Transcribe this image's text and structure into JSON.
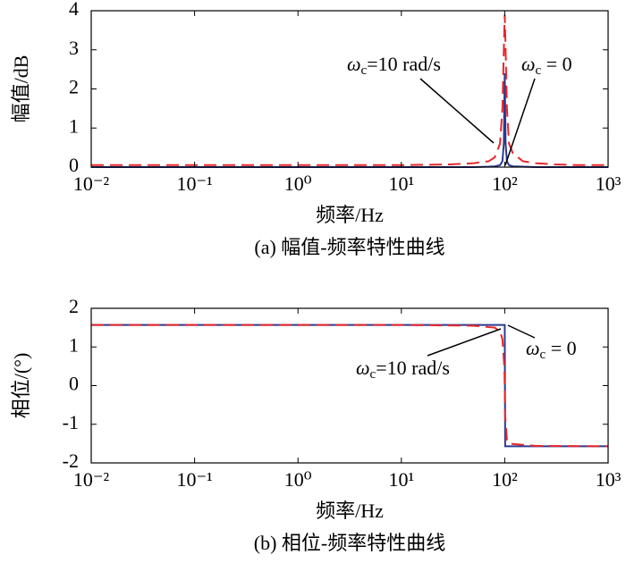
{
  "chart_data": [
    {
      "type": "line",
      "xlabel": "频率/Hz",
      "ylabel": "幅值/dB",
      "caption": "(a) 幅值-频率特性曲线",
      "xscale": "log",
      "xlim": [
        0.01,
        1000
      ],
      "xticks": [
        {
          "value": 0.01,
          "label": "10⁻²"
        },
        {
          "value": 0.1,
          "label": "10⁻¹"
        },
        {
          "value": 1,
          "label": "10⁰"
        },
        {
          "value": 10,
          "label": "10¹"
        },
        {
          "value": 100,
          "label": "10²"
        },
        {
          "value": 1000,
          "label": "10³"
        }
      ],
      "ylim": [
        0,
        4
      ],
      "yticks": [
        0,
        1,
        2,
        3,
        4
      ],
      "x": [
        0.01,
        0.1,
        1,
        10,
        30,
        50,
        70,
        80,
        90,
        95,
        98,
        100,
        102,
        105,
        110,
        120,
        150,
        200,
        300,
        500,
        1000
      ],
      "series": [
        {
          "name": "ωc = 0",
          "color": "#2b3a8f",
          "linestyle": "solid",
          "values": [
            0,
            0,
            0,
            0,
            0,
            0,
            0.01,
            0.02,
            0.05,
            0.15,
            0.6,
            2.4,
            0.6,
            0.15,
            0.05,
            0.02,
            0.01,
            0,
            0,
            0,
            0
          ]
        },
        {
          "name": "ωc=10 rad/s",
          "color": "#e8262b",
          "linestyle": "dashed",
          "values": [
            0.05,
            0.05,
            0.05,
            0.05,
            0.07,
            0.1,
            0.15,
            0.25,
            0.6,
            1.5,
            3.0,
            3.9,
            3.0,
            1.5,
            0.6,
            0.35,
            0.15,
            0.1,
            0.07,
            0.05,
            0.05
          ]
        }
      ],
      "annotations": [
        {
          "symbol": "ω",
          "subscript": "c",
          "text": "=10 rad/s"
        },
        {
          "symbol": "ω",
          "subscript": "c",
          "text": " = 0"
        }
      ]
    },
    {
      "type": "line",
      "xlabel": "频率/Hz",
      "ylabel": "相位/(°)",
      "caption": "(b) 相位-频率特性曲线",
      "xscale": "log",
      "xlim": [
        0.01,
        1000
      ],
      "xticks": [
        {
          "value": 0.01,
          "label": "10⁻²"
        },
        {
          "value": 0.1,
          "label": "10⁻¹"
        },
        {
          "value": 1,
          "label": "10⁰"
        },
        {
          "value": 10,
          "label": "10¹"
        },
        {
          "value": 100,
          "label": "10²"
        },
        {
          "value": 1000,
          "label": "10³"
        }
      ],
      "ylim": [
        -2,
        2
      ],
      "yticks": [
        -2,
        -1,
        0,
        1,
        2
      ],
      "x": [
        0.01,
        0.1,
        1,
        10,
        50,
        80,
        90,
        95,
        99,
        100,
        101,
        105,
        110,
        200,
        1000
      ],
      "series": [
        {
          "name": "ωc = 0",
          "color": "#2b3a8f",
          "linestyle": "solid",
          "values": [
            1.57,
            1.57,
            1.57,
            1.57,
            1.57,
            1.57,
            1.57,
            1.57,
            1.57,
            1.57,
            -1.57,
            -1.57,
            -1.57,
            -1.57,
            -1.57
          ]
        },
        {
          "name": "ωc=10 rad/s",
          "color": "#e8262b",
          "linestyle": "dashed",
          "values": [
            1.57,
            1.57,
            1.57,
            1.57,
            1.55,
            1.5,
            1.4,
            1.2,
            0.5,
            0,
            -0.8,
            -1.4,
            -1.5,
            -1.56,
            -1.57
          ]
        }
      ],
      "annotations": [
        {
          "symbol": "ω",
          "subscript": "c",
          "text": "=10 rad/s"
        },
        {
          "symbol": "ω",
          "subscript": "c",
          "text": " = 0"
        }
      ]
    }
  ]
}
